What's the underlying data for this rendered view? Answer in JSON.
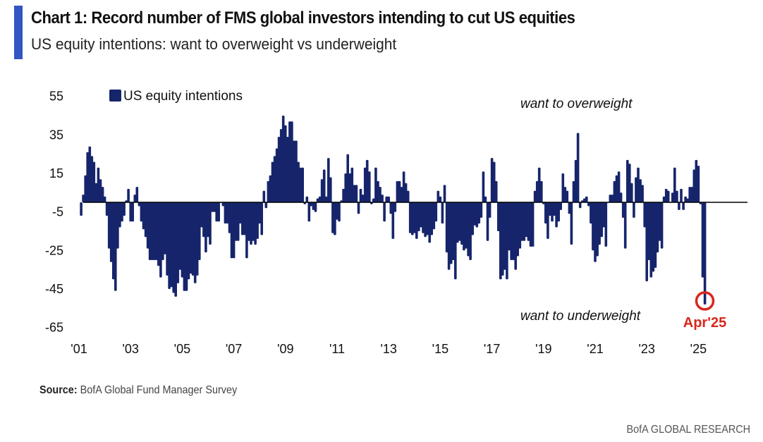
{
  "header": {
    "title": "Chart 1: Record number of FMS global investors intending to cut US equities",
    "subtitle": "US equity intentions: want to overweight vs underweight"
  },
  "footer": {
    "source_label": "Source:",
    "source_text": "BofA Global Fund Manager Survey",
    "brand": "BofA GLOBAL RESEARCH"
  },
  "colors": {
    "bars": "#16256b",
    "accent": "#3355c4",
    "highlight": "#d9261c",
    "zero_line": "#000000"
  },
  "chart_data": {
    "type": "bar",
    "title": "Chart 1: Record number of FMS global investors intending to cut US equities",
    "subtitle": "US equity intentions: want to overweight vs underweight",
    "frequency": "monthly",
    "start": "2001-02",
    "end": "2025-04",
    "ylim": [
      -65,
      55
    ],
    "yticks": [
      55,
      35,
      15,
      -5,
      -25,
      -45,
      -65
    ],
    "xtick_labels": [
      "'01",
      "'03",
      "'05",
      "'07",
      "'09",
      "'11",
      "'13",
      "'15",
      "'17",
      "'19",
      "'21",
      "'23",
      "'25"
    ],
    "xtick_years": [
      2001,
      2003,
      2005,
      2007,
      2009,
      2011,
      2013,
      2015,
      2017,
      2019,
      2021,
      2023,
      2025
    ],
    "grid": false,
    "legend": {
      "position": "top-left",
      "entries": [
        "US equity intentions"
      ]
    },
    "annotations": {
      "top": "want to overweight",
      "bottom": "want to underweight",
      "highlight": "Apr'25"
    },
    "series": [
      {
        "name": "US equity intentions",
        "values": [
          -7,
          4,
          14,
          26,
          29,
          24,
          21,
          10,
          18,
          12,
          8,
          3,
          -7,
          -24,
          -31,
          -40,
          -46,
          -24,
          -13,
          -10,
          -7,
          1,
          7,
          -10,
          -10,
          4,
          8,
          -2,
          -10,
          -14,
          -18,
          -24,
          -30,
          -30,
          -30,
          -30,
          -33,
          -39,
          -30,
          -27,
          -38,
          -45,
          -44,
          -47,
          -49,
          -42,
          -35,
          -39,
          -46,
          -46,
          -40,
          -37,
          -38,
          -42,
          -38,
          -30,
          -13,
          -18,
          -26,
          -18,
          -22,
          -5,
          -5,
          -10,
          -10,
          0,
          -2,
          -11,
          -11,
          -16,
          -29,
          -29,
          -20,
          -20,
          -11,
          -17,
          -17,
          -29,
          -20,
          -22,
          -20,
          -22,
          -19,
          -11,
          -17,
          6,
          -3,
          11,
          14,
          21,
          24,
          28,
          34,
          38,
          45,
          40,
          34,
          42,
          42,
          32,
          32,
          21,
          18,
          18,
          -1,
          3,
          -10,
          -2,
          -4,
          -5,
          2,
          3,
          12,
          17,
          3,
          23,
          13,
          -16,
          -17,
          -9,
          -10,
          1,
          7,
          15,
          25,
          15,
          18,
          9,
          9,
          -6,
          7,
          4,
          18,
          22,
          16,
          -1,
          2,
          18,
          11,
          8,
          4,
          -10,
          3,
          3,
          -6,
          -19,
          -5,
          11,
          11,
          8,
          16,
          10,
          6,
          -16,
          -17,
          -16,
          -19,
          -15,
          -13,
          -16,
          -18,
          -17,
          -21,
          -17,
          -14,
          -10,
          6,
          3,
          -11,
          9,
          -26,
          -35,
          -32,
          -30,
          -40,
          -21,
          -20,
          -22,
          -25,
          -24,
          -28,
          -30,
          -17,
          -12,
          -13,
          -11,
          -8,
          16,
          3,
          -20,
          -8,
          23,
          21,
          11,
          -15,
          -40,
          -38,
          -35,
          -40,
          -25,
          -30,
          -30,
          -35,
          -28,
          -24,
          -20,
          -20,
          -18,
          -20,
          -23,
          -23,
          6,
          11,
          18,
          11,
          -1,
          -11,
          -19,
          -7,
          -10,
          -7,
          -13,
          -10,
          -4,
          15,
          8,
          6,
          -6,
          -22,
          11,
          22,
          36,
          -3,
          1,
          2,
          3,
          -2,
          -11,
          -25,
          -31,
          -28,
          -22,
          -18,
          -13,
          -23,
          0,
          4,
          4,
          11,
          14,
          16,
          5,
          -8,
          -24,
          22,
          20,
          10,
          -8,
          13,
          18,
          12,
          9,
          -13,
          -41,
          -30,
          -39,
          -36,
          -34,
          -26,
          -20,
          -24,
          3,
          7,
          6,
          0,
          5,
          18,
          6,
          -4,
          7,
          -4,
          3,
          2,
          8,
          8,
          17,
          22,
          19,
          -1,
          -39,
          -53
        ]
      }
    ]
  }
}
